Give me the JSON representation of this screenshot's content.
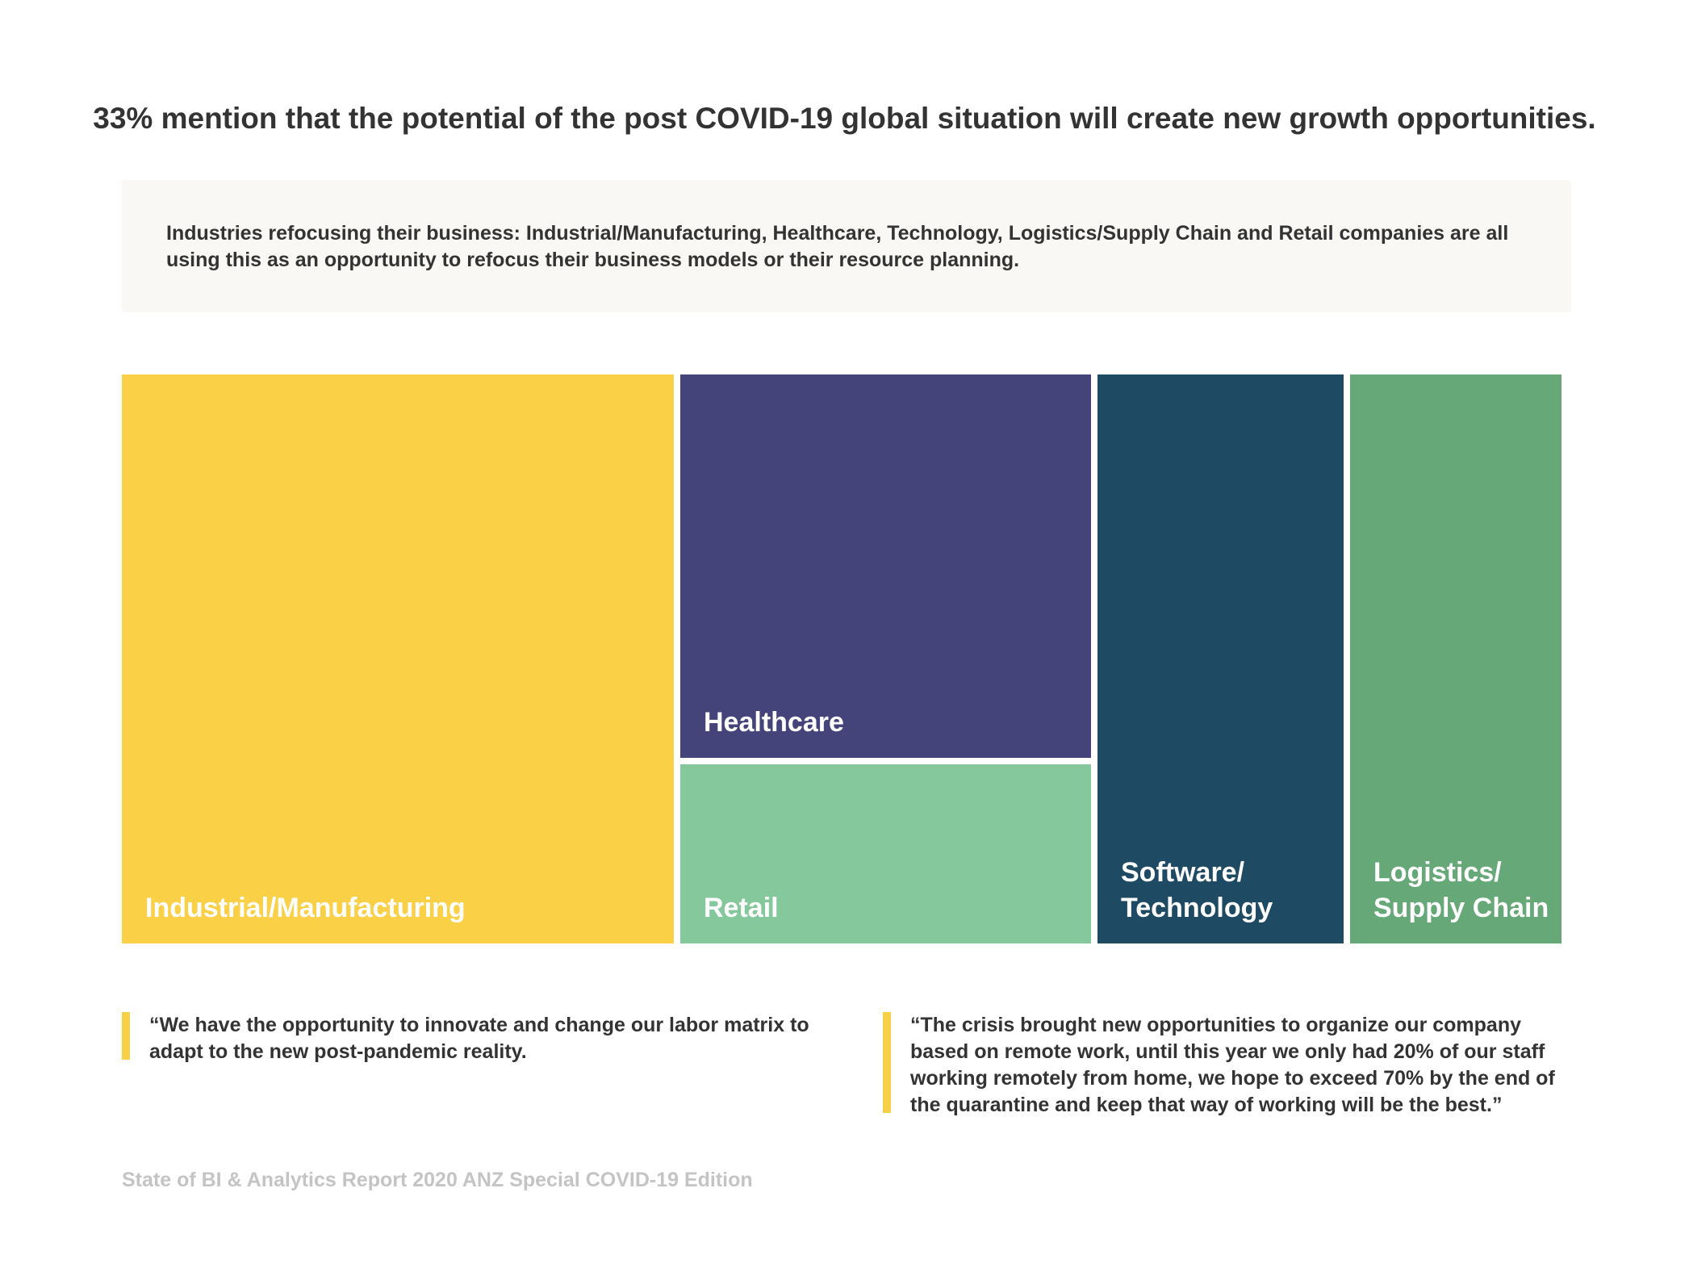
{
  "headline": "33% mention that the potential of the post COVID-19 global situation will create new growth opportunities.",
  "callout": "Industries refocusing their business: Industrial/Manufacturing, Healthcare, Technology, Logistics/Supply Chain and Retail companies are all using this as an opportunity to refocus their business models or their resource planning.",
  "chart_data": {
    "type": "treemap",
    "title": "",
    "categories": [
      "Industrial/Manufacturing",
      "Healthcare",
      "Retail",
      "Software/ Technology",
      "Logistics/ Supply Chain"
    ],
    "tiles": [
      {
        "label": "Industrial/Manufacturing",
        "color": "#f9d046"
      },
      {
        "label": "Healthcare",
        "color": "#44437a"
      },
      {
        "label": "Retail",
        "color": "#85c89b"
      },
      {
        "label": "Software/\nTechnology",
        "color": "#1e4b63"
      },
      {
        "label": "Logistics/\nSupply Chain",
        "color": "#66a877"
      }
    ]
  },
  "quotes": [
    {
      "text": "“We have the opportunity to innovate and change our labor matrix to adapt to the new post-pandemic reality."
    },
    {
      "text": "“The crisis brought new opportunities to organize our company based on remote work, until this year we only had 20% of our staff working remotely from home, we hope to exceed 70% by the end of the quarantine and keep that way of working will be the best.”"
    }
  ],
  "footer": "State of BI & Analytics Report 2020 ANZ Special COVID-19 Edition",
  "colors": {
    "accent": "#f8d045",
    "callout_bg": "#f9f8f4",
    "text": "#333333",
    "footer": "#c4c4c4"
  }
}
